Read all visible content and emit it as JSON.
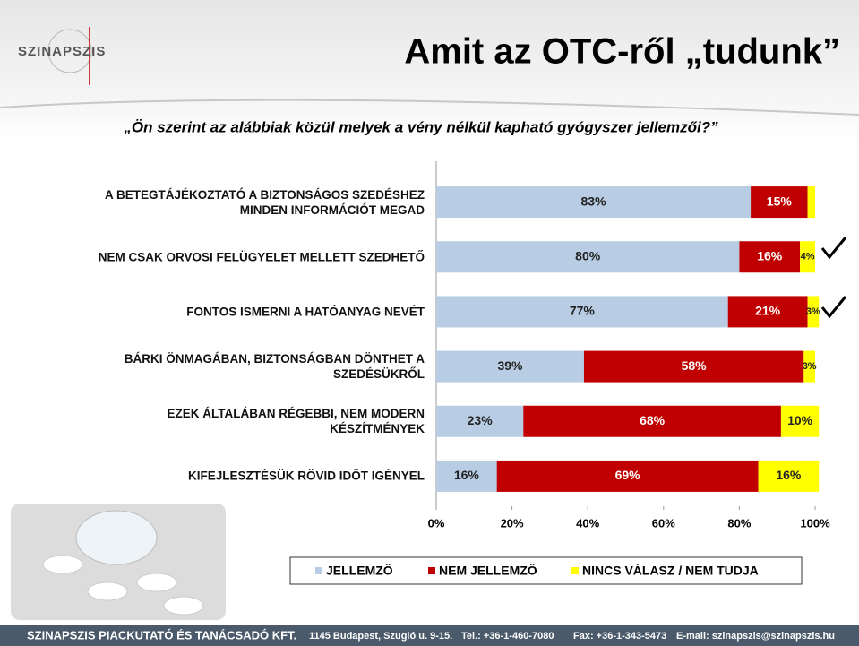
{
  "logo": "SZINAPSZIS",
  "footer": [
    "SZINAPSZIS PIACKUTATÓ ÉS TANÁCSADÓ KFT.",
    "1145 Budapest, Szugló u. 9-15.",
    "Tel.: +36-1-460-7080",
    "Fax: +36-1-343-5473",
    "E-mail: szinapszis@szinapszis.hu"
  ],
  "chart_data": {
    "type": "stacked-bar-horizontal",
    "title": "Amit az OTC-ről „tudunk”",
    "subtitle": "„Ön szerint az alábbiak közül melyek a vény nélkül kapható gyógyszer jellemzői?”",
    "categories": [
      "A BETEGTÁJÉKOZTATÓ A BIZTONSÁGOS SZEDÉSHEZ\nMINDEN INFORMÁCIÓT MEGAD",
      "NEM CSAK ORVOSI FELÜGYELET MELLETT SZEDHETŐ",
      "FONTOS ISMERNI A HATÓANYAG NEVÉT",
      "BÁRKI ÖNMAGÁBAN, BIZTONSÁGBAN DÖNTHET A\nSZEDÉSÜKRŐL",
      "EZEK ÁLTALÁBAN RÉGEBBI, NEM MODERN\nKÉSZÍTMÉNYEK",
      "KIFEJLESZTÉSÜK RÖVID IDŐT IGÉNYEL"
    ],
    "series": [
      {
        "name": "JELLEMZŐ",
        "color": "#b8cce4",
        "label_color": "#222222",
        "values": [
          83,
          80,
          77,
          39,
          23,
          16
        ],
        "value_labels": [
          "83%",
          "80%",
          "77%",
          "39%",
          "23%",
          "16%"
        ]
      },
      {
        "name": "NEM JELLEMZŐ",
        "color": "#c00000",
        "label_color": "#ffffff",
        "values": [
          15,
          16,
          21,
          58,
          68,
          69
        ],
        "value_labels": [
          "15%",
          "16%",
          "21%",
          "58%",
          "68%",
          "69%"
        ]
      },
      {
        "name": "NINCS VÁLASZ / NEM TUDJA",
        "color": "#ffff00",
        "label_color": "#222222",
        "values": [
          2,
          4,
          3,
          3,
          10,
          16
        ],
        "value_labels": [
          null,
          "4%",
          "3%",
          "3%",
          "10%",
          "16%"
        ]
      }
    ],
    "xlim": [
      0,
      100
    ],
    "xticks": [
      {
        "value": 0,
        "label": "0%"
      },
      {
        "value": 20,
        "label": "20%"
      },
      {
        "value": 40,
        "label": "40%"
      },
      {
        "value": 60,
        "label": "60%"
      },
      {
        "value": 80,
        "label": "80%"
      },
      {
        "value": 100,
        "label": "100%"
      }
    ],
    "legend": "bottom"
  }
}
